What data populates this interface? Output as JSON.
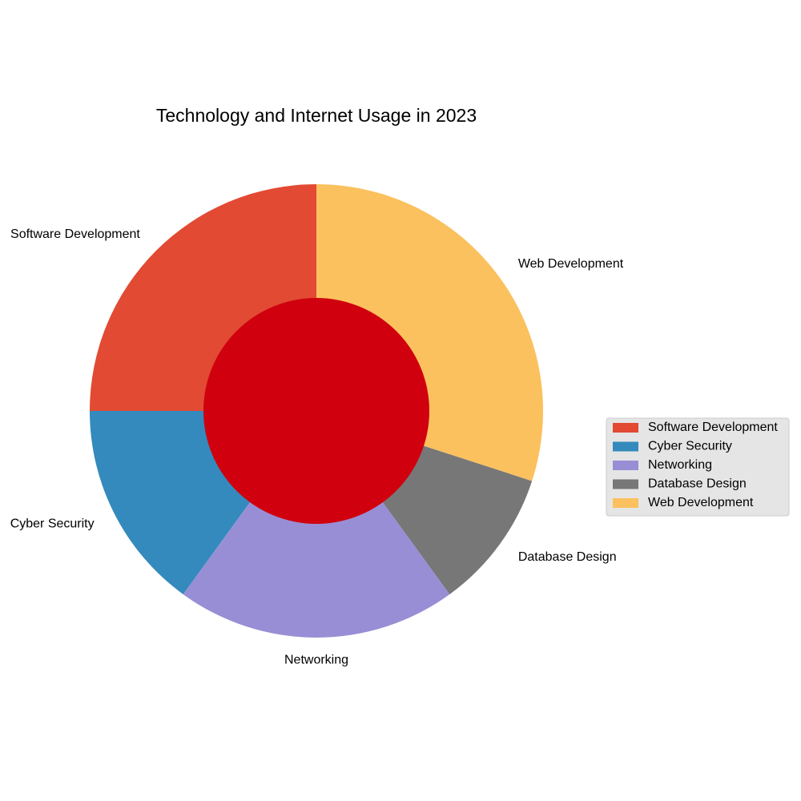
{
  "chart_data": {
    "type": "pie",
    "title": "Technology and Internet Usage in 2023",
    "categories": [
      "Software Development",
      "Cyber Security",
      "Networking",
      "Database Design",
      "Web Development"
    ],
    "values": [
      25,
      15,
      20,
      10,
      30
    ],
    "colors": [
      "#E24A33",
      "#348ABD",
      "#988ED5",
      "#777777",
      "#FBC15E"
    ],
    "center_color": "#D0000E",
    "donut": true,
    "start_angle_deg": 90,
    "direction": "counterclockwise",
    "legend": {
      "placement": "center-right",
      "entries": [
        "Software Development",
        "Cyber Security",
        "Networking",
        "Database Design",
        "Web Development"
      ]
    }
  }
}
